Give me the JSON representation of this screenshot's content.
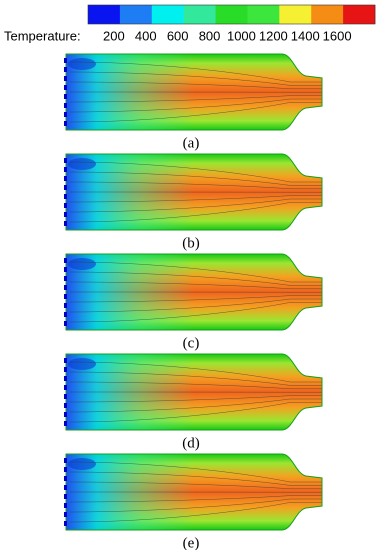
{
  "colorbar": {
    "label": "Temperature:",
    "ticks": [
      200,
      400,
      600,
      800,
      1000,
      1200,
      1400,
      1600
    ],
    "colors": [
      "#0a14f0",
      "#1e7cf5",
      "#00f0f0",
      "#32e89a",
      "#28dc28",
      "#3ce63c",
      "#f5f032",
      "#f58c14",
      "#e61414"
    ]
  },
  "panels": [
    {
      "caption": "(a)"
    },
    {
      "caption": "(b)"
    },
    {
      "caption": "(c)"
    },
    {
      "caption": "(d)"
    },
    {
      "caption": "(e)"
    }
  ]
}
